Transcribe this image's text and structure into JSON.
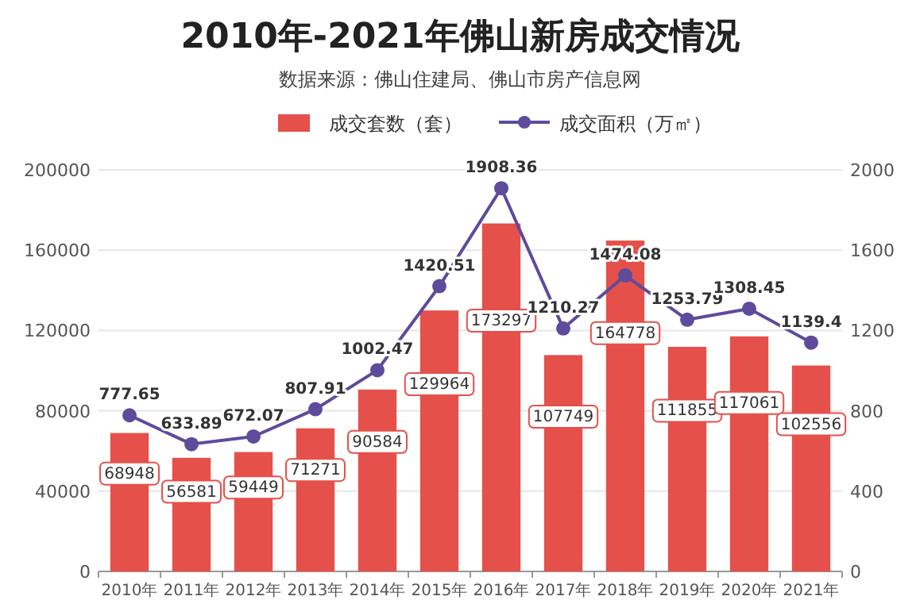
{
  "chart_data": {
    "type": "bar",
    "title": "2010年-2021年佛山新房成交情况",
    "subtitle": "数据来源：佛山住建局、佛山市房产信息网",
    "categories": [
      "2010年",
      "2011年",
      "2012年",
      "2013年",
      "2014年",
      "2015年",
      "2016年",
      "2017年",
      "2018年",
      "2019年",
      "2020年",
      "2021年"
    ],
    "series": [
      {
        "name": "成交套数（套）",
        "color": "#e5504a",
        "values": [
          68948,
          56581,
          59449,
          71271,
          90584,
          129964,
          173297,
          107749,
          164778,
          111855,
          117061,
          102556
        ]
      },
      {
        "name": "成交面积（万㎡）",
        "type": "line",
        "axis": "y2",
        "color": "#5e4b9c",
        "marker": "circle",
        "values": [
          777.65,
          633.89,
          672.07,
          807.91,
          1002.47,
          1420.51,
          1908.36,
          1210.27,
          1474.08,
          1253.79,
          1308.45,
          1139.4
        ]
      }
    ],
    "ylim": [
      0,
      200000
    ],
    "yticks": [
      0,
      40000,
      80000,
      120000,
      160000,
      200000
    ],
    "y2lim": [
      0,
      2000
    ],
    "y2ticks": [
      0,
      400,
      800,
      1200,
      1600,
      2000
    ],
    "data_labels": true,
    "legend": "top",
    "grid": "y"
  }
}
